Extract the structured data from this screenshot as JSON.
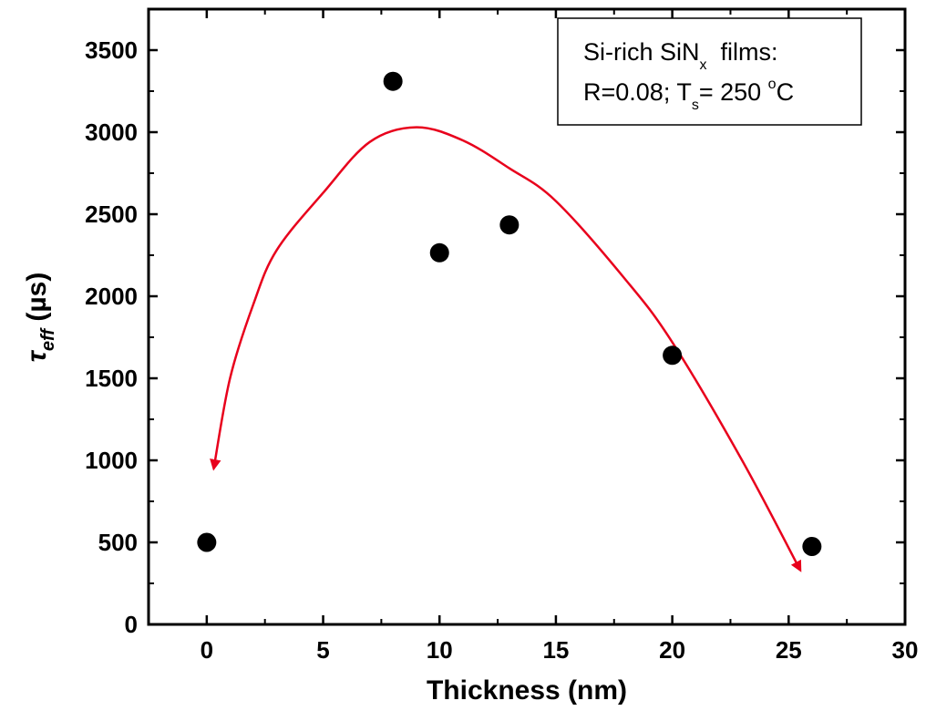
{
  "chart_data": {
    "type": "scatter",
    "xlabel": "Thickness (nm)",
    "ylabel": {
      "symbol": "τ",
      "subscript": "eff",
      "unit": " (µs)"
    },
    "xlim": [
      -2.5,
      30
    ],
    "ylim": [
      0,
      3750
    ],
    "xticks": [
      "0",
      "5",
      "10",
      "15",
      "20",
      "25",
      "30"
    ],
    "yticks": [
      "0",
      "500",
      "1000",
      "1500",
      "2000",
      "2500",
      "3000",
      "3500"
    ],
    "grid": false,
    "series": [
      {
        "marker": "circle",
        "color": "#000000",
        "points": [
          {
            "x": 0,
            "y": 500
          },
          {
            "x": 8,
            "y": 3310
          },
          {
            "x": 10,
            "y": 2265
          },
          {
            "x": 13,
            "y": 2435
          },
          {
            "x": 20,
            "y": 1640
          },
          {
            "x": 26,
            "y": 475
          }
        ]
      }
    ],
    "guide_curve": {
      "color": "#e8001c",
      "arrowheads": "both-ends",
      "points": [
        {
          "x": 0.3,
          "y": 950
        },
        {
          "x": 1,
          "y": 1500
        },
        {
          "x": 2,
          "y": 1950
        },
        {
          "x": 3,
          "y": 2280
        },
        {
          "x": 5,
          "y": 2630
        },
        {
          "x": 7,
          "y": 2940
        },
        {
          "x": 9,
          "y": 3030
        },
        {
          "x": 11,
          "y": 2950
        },
        {
          "x": 13,
          "y": 2780
        },
        {
          "x": 15,
          "y": 2580
        },
        {
          "x": 18,
          "y": 2100
        },
        {
          "x": 20,
          "y": 1720
        },
        {
          "x": 23,
          "y": 1000
        },
        {
          "x": 25.5,
          "y": 330
        }
      ]
    },
    "legend_box": {
      "position": "top-right",
      "line1": {
        "text": "Si-rich SiN",
        "sub": "x",
        "after": "  films:"
      },
      "line2": {
        "text": "R=0.08; T",
        "sub": "s",
        "mid": "= 250 ",
        "sup": "o",
        "after": "C"
      }
    }
  }
}
